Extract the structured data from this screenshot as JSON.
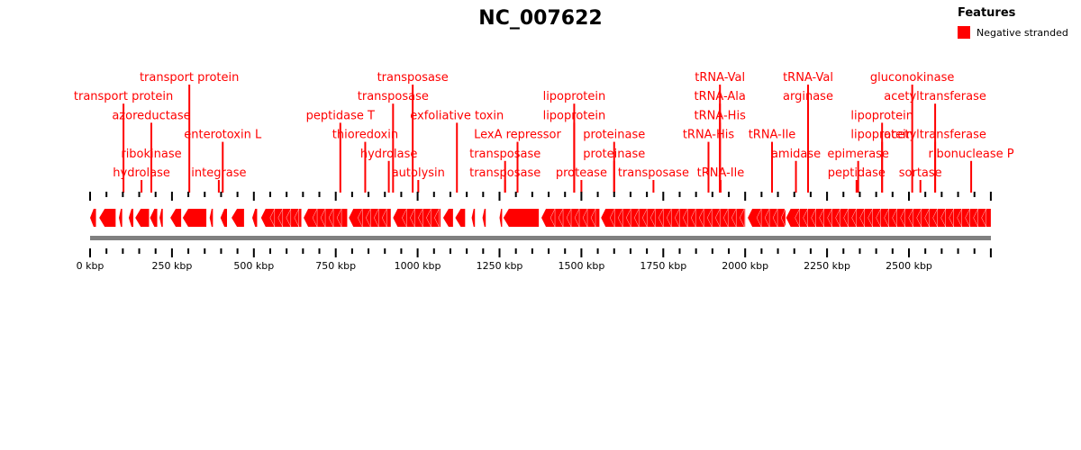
{
  "title": "NC_007622",
  "legend": {
    "title": "Features",
    "entries": [
      {
        "label": "Negative stranded",
        "color": "#ff0000"
      }
    ]
  },
  "colors": {
    "feature": "#ff0000",
    "axis": "#808080",
    "text": "#000000"
  },
  "genome": {
    "length_kbp": 2750,
    "tick_labels": [
      "0 kbp",
      "250 kbp",
      "500 kbp",
      "750 kbp",
      "1000 kbp",
      "1250 kbp",
      "1500 kbp",
      "1750 kbp",
      "2000 kbp",
      "2250 kbp",
      "2500 kbp"
    ],
    "major_tick_step_kbp": 250,
    "minor_tick_step_kbp": 50
  },
  "features": {
    "strand": "negative",
    "intervals_kbp": [
      [
        0,
        18
      ],
      [
        28,
        78
      ],
      [
        88,
        98
      ],
      [
        118,
        132
      ],
      [
        138,
        180
      ],
      [
        183,
        205
      ],
      [
        212,
        222
      ],
      [
        245,
        278
      ],
      [
        283,
        355
      ],
      [
        365,
        375
      ],
      [
        398,
        418
      ],
      [
        432,
        470
      ],
      [
        495,
        510
      ],
      [
        522,
        645
      ],
      [
        652,
        785
      ],
      [
        790,
        918
      ],
      [
        925,
        1070
      ],
      [
        1078,
        1108
      ],
      [
        1115,
        1145
      ],
      [
        1165,
        1175
      ],
      [
        1198,
        1208
      ],
      [
        1250,
        1258
      ],
      [
        1262,
        1370
      ],
      [
        1378,
        1555
      ],
      [
        1560,
        2000
      ],
      [
        2008,
        2120
      ],
      [
        2125,
        2750
      ]
    ]
  },
  "annotations": [
    {
      "label": "transport protein",
      "pos_kbp": 303,
      "row": 0
    },
    {
      "label": "transport protein",
      "pos_kbp": 102,
      "row": 1
    },
    {
      "label": "azoreductase",
      "pos_kbp": 187,
      "row": 2
    },
    {
      "label": "ribokinase",
      "pos_kbp": 187,
      "row": 4
    },
    {
      "label": "hydrolase",
      "pos_kbp": 157,
      "row": 5
    },
    {
      "label": "enterotoxin L",
      "pos_kbp": 405,
      "row": 3
    },
    {
      "label": "integrase",
      "pos_kbp": 393,
      "row": 5
    },
    {
      "label": "peptidase T",
      "pos_kbp": 764,
      "row": 2
    },
    {
      "label": "thioredoxin",
      "pos_kbp": 840,
      "row": 3
    },
    {
      "label": "transposase",
      "pos_kbp": 985,
      "row": 0
    },
    {
      "label": "transposase",
      "pos_kbp": 925,
      "row": 1
    },
    {
      "label": "hydrolase",
      "pos_kbp": 912,
      "row": 4
    },
    {
      "label": "autolysin",
      "pos_kbp": 1002,
      "row": 5
    },
    {
      "label": "exfoliative toxin",
      "pos_kbp": 1120,
      "row": 2
    },
    {
      "label": "LexA repressor",
      "pos_kbp": 1305,
      "row": 3
    },
    {
      "label": "transposase",
      "pos_kbp": 1267,
      "row": 4
    },
    {
      "label": "transposase",
      "pos_kbp": 1267,
      "row": 5
    },
    {
      "label": "lipoprotein",
      "pos_kbp": 1478,
      "row": 1
    },
    {
      "label": "lipoprotein",
      "pos_kbp": 1478,
      "row": 2
    },
    {
      "label": "proteinase",
      "pos_kbp": 1600,
      "row": 3
    },
    {
      "label": "proteinase",
      "pos_kbp": 1600,
      "row": 4
    },
    {
      "label": "protease",
      "pos_kbp": 1500,
      "row": 5
    },
    {
      "label": "transposase",
      "pos_kbp": 1720,
      "row": 5
    },
    {
      "label": "tRNA-Val",
      "pos_kbp": 1923,
      "row": 0
    },
    {
      "label": "tRNA-Ala",
      "pos_kbp": 1923,
      "row": 1
    },
    {
      "label": "tRNA-His",
      "pos_kbp": 1923,
      "row": 2
    },
    {
      "label": "tRNA-His",
      "pos_kbp": 1888,
      "row": 3
    },
    {
      "label": "tRNA-Ile",
      "pos_kbp": 1925,
      "row": 5
    },
    {
      "label": "tRNA-Ile",
      "pos_kbp": 2082,
      "row": 3
    },
    {
      "label": "tRNA-Val",
      "pos_kbp": 2192,
      "row": 0
    },
    {
      "label": "arginase",
      "pos_kbp": 2192,
      "row": 1
    },
    {
      "label": "amidase",
      "pos_kbp": 2155,
      "row": 4
    },
    {
      "label": "epimerase",
      "pos_kbp": 2345,
      "row": 4
    },
    {
      "label": "peptidase",
      "pos_kbp": 2340,
      "row": 5
    },
    {
      "label": "gluconokinase",
      "pos_kbp": 2510,
      "row": 0
    },
    {
      "label": "acetyltransferase",
      "pos_kbp": 2580,
      "row": 1
    },
    {
      "label": "lipoprotein",
      "pos_kbp": 2418,
      "row": 2
    },
    {
      "label": "lipoprotein",
      "pos_kbp": 2418,
      "row": 3
    },
    {
      "label": "acetyltransferase",
      "pos_kbp": 2580,
      "row": 3
    },
    {
      "label": "ribonuclease P",
      "pos_kbp": 2690,
      "row": 4
    },
    {
      "label": "sortase",
      "pos_kbp": 2535,
      "row": 5
    }
  ]
}
